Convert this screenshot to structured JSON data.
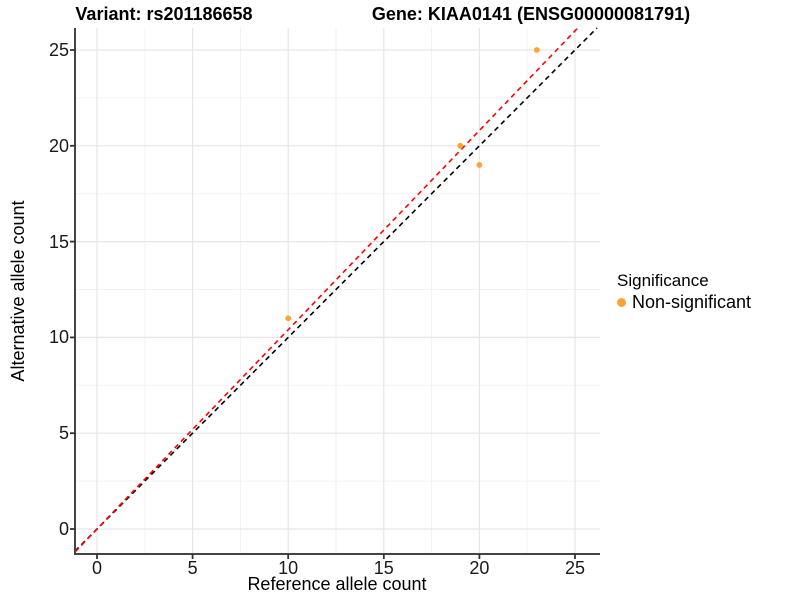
{
  "chart_data": {
    "type": "scatter",
    "titles": {
      "variant": "Variant: rs201186658",
      "gene": "Gene: KIAA0141 (ENSG00000081791)"
    },
    "xlabel": "Reference allele count",
    "ylabel": "Alternative allele count",
    "x_ticks": [
      0,
      5,
      10,
      15,
      20,
      25
    ],
    "y_ticks": [
      0,
      5,
      10,
      15,
      20,
      25
    ],
    "x_minor_ticks": [
      2.5,
      7.5,
      12.5,
      17.5,
      22.5
    ],
    "y_minor_ticks": [
      2.5,
      7.5,
      12.5,
      17.5,
      22.5
    ],
    "xlim": [
      -1.15,
      26.31
    ],
    "ylim": [
      -1.3,
      26.15
    ],
    "grid": true,
    "legend_position": "right",
    "series": [
      {
        "name": "Non-significant",
        "color": "#FFA333",
        "points": [
          {
            "x": 10,
            "y": 11
          },
          {
            "x": 19,
            "y": 20
          },
          {
            "x": 20,
            "y": 19
          },
          {
            "x": 23,
            "y": 25
          }
        ]
      }
    ],
    "lines": [
      {
        "name": "identity-line",
        "slope": 1.0,
        "intercept": 0,
        "color": "#000000",
        "style": "dashed"
      },
      {
        "name": "fit-line",
        "slope": 1.04,
        "intercept": 0,
        "color": "#FF0000",
        "style": "dashed"
      }
    ],
    "legend": {
      "title": "Significance",
      "items": [
        {
          "label": "Non-significant",
          "color": "#FFA333"
        }
      ]
    },
    "colors": {
      "background": "#FFFFFF",
      "grid_major": "#E6E6E6",
      "grid_minor": "#F2F2F2",
      "axis_line": "#444444",
      "tick_mark": "#333333"
    }
  }
}
